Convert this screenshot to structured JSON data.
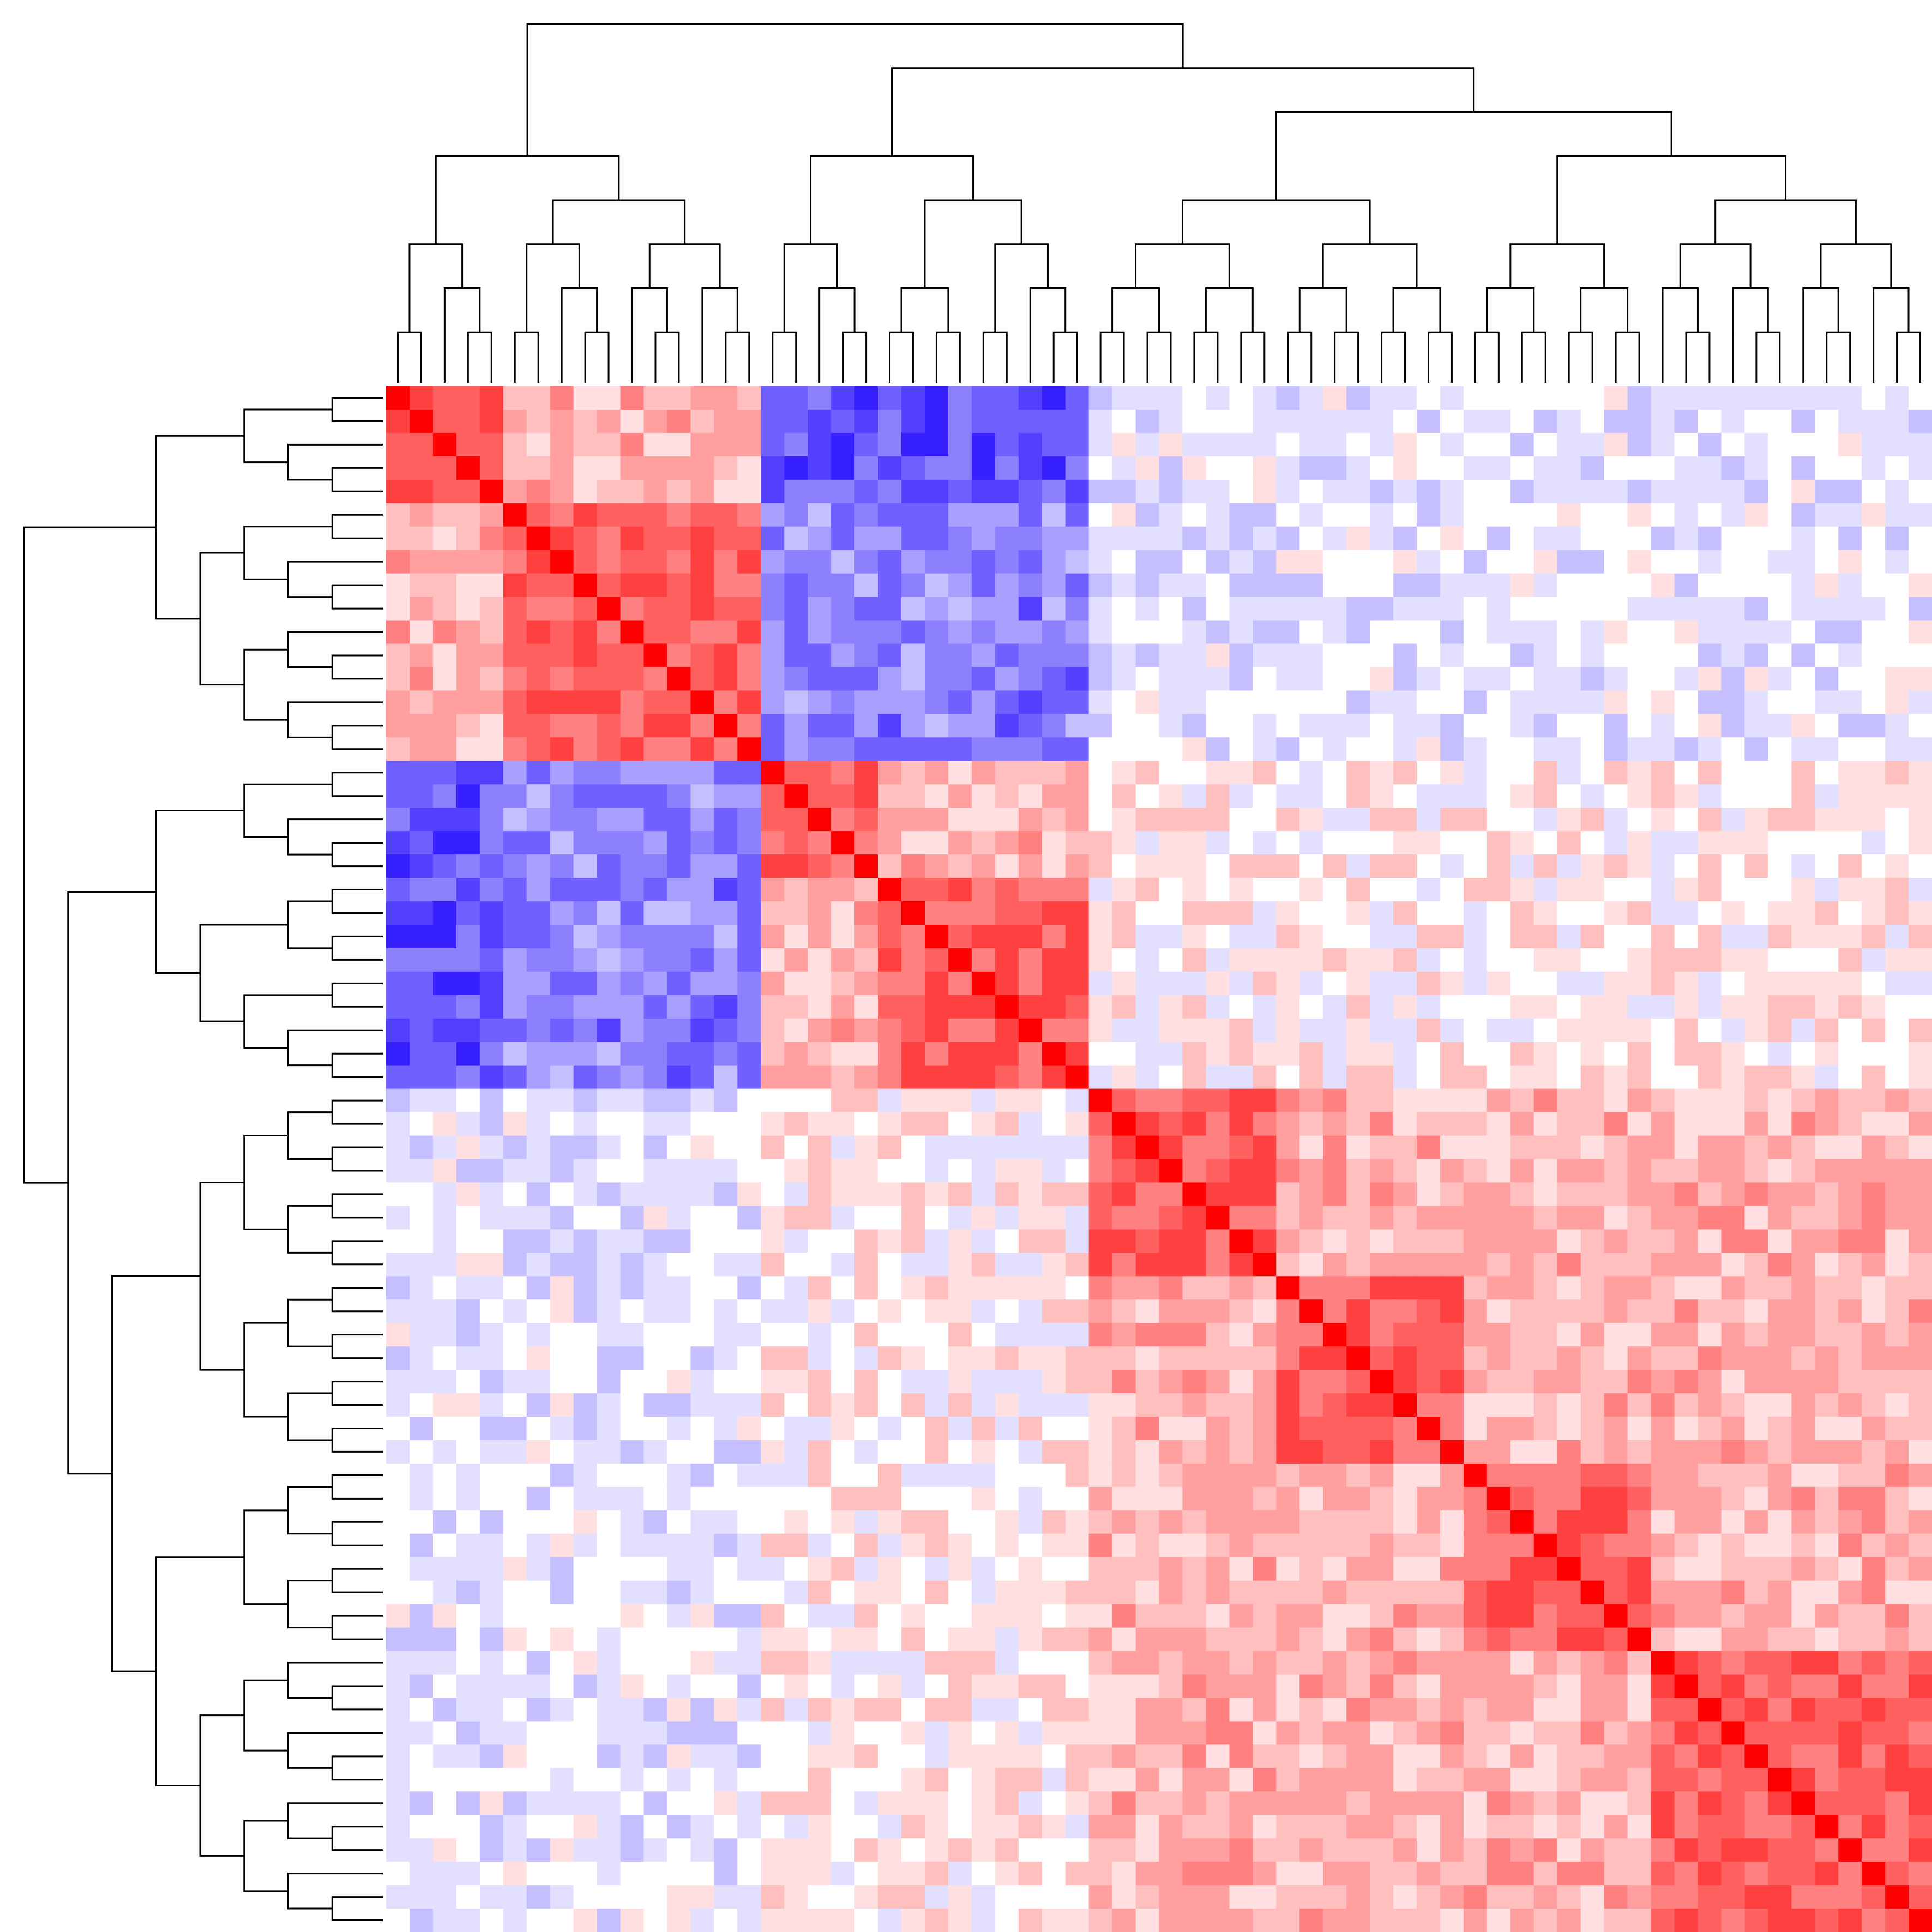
{
  "chart_data": {
    "type": "heatmap",
    "title": "",
    "xlabel": "",
    "ylabel": "",
    "n": 66,
    "clusters": [
      {
        "start": 0,
        "size": 16
      },
      {
        "start": 16,
        "size": 14
      },
      {
        "start": 30,
        "size": 36
      }
    ],
    "subclusters": [
      {
        "start": 0,
        "size": 5
      },
      {
        "start": 5,
        "size": 11
      },
      {
        "start": 16,
        "size": 5
      },
      {
        "start": 21,
        "size": 9
      },
      {
        "start": 30,
        "size": 8
      },
      {
        "start": 38,
        "size": 8
      },
      {
        "start": 46,
        "size": 8
      },
      {
        "start": 54,
        "size": 12
      }
    ],
    "value_range": [
      -1,
      1
    ],
    "colors": {
      "low": "#1a00ff",
      "mid": "#ffffff",
      "high": "#ff0000"
    },
    "dendrograms": {
      "top": true,
      "left": true
    },
    "grid": false,
    "legend": "none"
  }
}
